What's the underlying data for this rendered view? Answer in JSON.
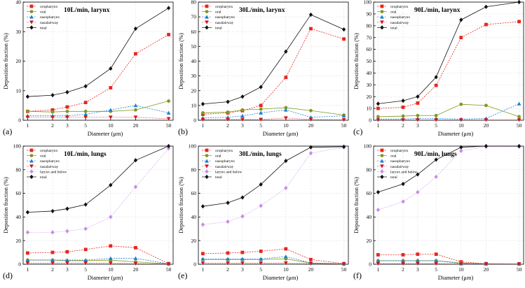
{
  "figure": {
    "colors": {
      "oropharynx": "#e8251f",
      "oral": "#7f9a1b",
      "nasopharynx": "#1f7fd6",
      "nasalairway": "#d2171f",
      "larynx_and_below": "#c98ae6",
      "total": "#111111"
    }
  },
  "chart_data": [
    {
      "type": "line",
      "panel_label": "(a)",
      "title": "10L/min, larynx",
      "xlabel": "Diameter (μm)",
      "ylabel": "Deposition fraction (%)",
      "x_tick_labels": [
        "1",
        "2",
        "3",
        "5",
        "10",
        "20",
        "50"
      ],
      "x": [
        1,
        2,
        3,
        5,
        10,
        20,
        50
      ],
      "ylim": [
        0,
        40
      ],
      "yticks": [
        0,
        10,
        20,
        30,
        40
      ],
      "series": [
        {
          "name": "oropharynx",
          "values": [
            3,
            3.5,
            4.5,
            6,
            11,
            22.5,
            29
          ]
        },
        {
          "name": "oral",
          "values": [
            3,
            2.8,
            3,
            3,
            3,
            3.5,
            6.5
          ]
        },
        {
          "name": "nasopharynx",
          "values": [
            1.5,
            1.5,
            1.5,
            2,
            3.5,
            5,
            2.5
          ]
        },
        {
          "name": "nasalairway",
          "values": [
            1,
            1,
            1,
            1,
            1,
            1,
            0.5
          ]
        },
        {
          "name": "total",
          "values": [
            8,
            8.5,
            9.5,
            11.5,
            17.5,
            31,
            38
          ]
        }
      ]
    },
    {
      "type": "line",
      "panel_label": "(b)",
      "title": "30L/min, larynx",
      "xlabel": "Diameter (μm)",
      "ylabel": "Deposition fraction (%)",
      "x_tick_labels": [
        "1",
        "2",
        "3",
        "5",
        "10",
        "20",
        "50"
      ],
      "x": [
        1,
        2,
        3,
        5,
        10,
        20,
        50
      ],
      "ylim": [
        0,
        80
      ],
      "yticks": [
        0,
        10,
        20,
        30,
        40,
        50,
        60,
        70,
        80
      ],
      "series": [
        {
          "name": "oropharynx",
          "values": [
            4,
            5,
            6.5,
            10,
            29,
            62,
            55
          ]
        },
        {
          "name": "oral",
          "values": [
            5,
            5.5,
            7,
            7.5,
            8.5,
            6.5,
            3.5
          ]
        },
        {
          "name": "nasopharynx",
          "values": [
            1.5,
            2,
            3,
            5,
            7,
            2,
            3
          ]
        },
        {
          "name": "nasalairway",
          "values": [
            0.5,
            0.5,
            0.5,
            0.5,
            1.5,
            0.5,
            0.3
          ]
        },
        {
          "name": "total",
          "values": [
            11,
            12.5,
            16,
            22.5,
            46.5,
            71.5,
            61.5
          ]
        }
      ]
    },
    {
      "type": "line",
      "panel_label": "(c)",
      "title": "90L/min, larynx",
      "xlabel": "Diameter (μm)",
      "ylabel": "Deposition fraction (%)",
      "x_tick_labels": [
        "1",
        "2",
        "3",
        "5",
        "10",
        "20",
        "50"
      ],
      "x": [
        1,
        2,
        3,
        5,
        10,
        20,
        50
      ],
      "ylim": [
        0,
        100
      ],
      "yticks": [
        0,
        10,
        20,
        30,
        40,
        50,
        60,
        70,
        80,
        90,
        100
      ],
      "series": [
        {
          "name": "oropharynx",
          "values": [
            10,
            11,
            14.5,
            29.5,
            70,
            81,
            83.5
          ]
        },
        {
          "name": "oral",
          "values": [
            3,
            3.5,
            4,
            4,
            13.5,
            12.5,
            3
          ]
        },
        {
          "name": "nasopharynx",
          "values": [
            1,
            1,
            1.5,
            1.5,
            1,
            1.5,
            14
          ]
        },
        {
          "name": "nasalairway",
          "values": [
            0.2,
            0.2,
            0.2,
            0.2,
            0.2,
            0.2,
            0.2
          ]
        },
        {
          "name": "total",
          "values": [
            14,
            16.5,
            20,
            36.5,
            85,
            96,
            100
          ]
        }
      ]
    },
    {
      "type": "line",
      "panel_label": "(d)",
      "title": "10L/min, lungs",
      "xlabel": "Diameter (μm)",
      "ylabel": "Deposition fraction (%)",
      "x_tick_labels": [
        "1",
        "2",
        "3",
        "5",
        "10",
        "20",
        "50"
      ],
      "x": [
        1,
        2,
        3,
        5,
        10,
        20,
        50
      ],
      "ylim": [
        0,
        100
      ],
      "yticks": [
        0,
        20,
        40,
        60,
        80,
        100
      ],
      "series": [
        {
          "name": "oropharynx",
          "values": [
            9.5,
            10,
            10.5,
            12.5,
            15.5,
            14,
            0.5
          ]
        },
        {
          "name": "oral",
          "values": [
            3.5,
            3.5,
            3,
            3,
            3.5,
            2,
            0.3
          ]
        },
        {
          "name": "nasopharynx",
          "values": [
            3.5,
            3.5,
            3.5,
            3.5,
            5,
            5,
            0.3
          ]
        },
        {
          "name": "nasalairway",
          "values": [
            1,
            1,
            1,
            1,
            1,
            0.5,
            0.2
          ]
        },
        {
          "name": "larynx and below",
          "values": [
            27,
            27,
            28,
            30,
            40,
            65.5,
            98
          ]
        },
        {
          "name": "total",
          "values": [
            44,
            45,
            47,
            50.5,
            67,
            88,
            100
          ]
        }
      ]
    },
    {
      "type": "line",
      "panel_label": "(e)",
      "title": "30L/min, lungs",
      "xlabel": "Diameter (μm)",
      "ylabel": "Deposition fraction (%)",
      "x_tick_labels": [
        "1",
        "2",
        "3",
        "5",
        "10",
        "20",
        "50"
      ],
      "x": [
        1,
        2,
        3,
        5,
        10,
        20,
        50
      ],
      "ylim": [
        0,
        100
      ],
      "yticks": [
        0,
        20,
        40,
        60,
        80,
        100
      ],
      "series": [
        {
          "name": "oropharynx",
          "values": [
            9,
            9.5,
            10,
            11,
            13,
            4,
            0.5
          ]
        },
        {
          "name": "oral",
          "values": [
            4,
            4,
            4,
            4,
            4.5,
            1,
            0.3
          ]
        },
        {
          "name": "nasopharynx",
          "values": [
            4.5,
            4.5,
            4.5,
            4.5,
            6.5,
            1,
            0.3
          ]
        },
        {
          "name": "nasalairway",
          "values": [
            1,
            1,
            1,
            1,
            1,
            0.5,
            0.2
          ]
        },
        {
          "name": "larynx and below",
          "values": [
            33.5,
            36,
            40.5,
            49.5,
            64.5,
            94,
            99
          ]
        },
        {
          "name": "total",
          "values": [
            49,
            52,
            56.5,
            67.5,
            87.5,
            99,
            99.5
          ]
        }
      ]
    },
    {
      "type": "line",
      "panel_label": "(f)",
      "title": "90L/min, lungs",
      "xlabel": "Diameter (μm)",
      "ylabel": "Deposition fraction (%)",
      "x_tick_labels": [
        "1",
        "2",
        "3",
        "5",
        "10",
        "20",
        "50"
      ],
      "x": [
        1,
        2,
        3,
        5,
        10,
        20,
        50
      ],
      "ylim": [
        0,
        100
      ],
      "yticks": [
        0,
        20,
        40,
        60,
        80,
        100
      ],
      "series": [
        {
          "name": "oropharynx",
          "values": [
            8,
            8,
            8.5,
            8.5,
            2,
            0.5,
            0.3
          ]
        },
        {
          "name": "oral",
          "values": [
            3,
            3,
            3,
            3,
            1,
            0.3,
            0.2
          ]
        },
        {
          "name": "nasopharynx",
          "values": [
            3,
            3,
            3,
            3,
            0.5,
            0.3,
            0.2
          ]
        },
        {
          "name": "nasalairway",
          "values": [
            0.5,
            0.5,
            0.5,
            0.5,
            0.2,
            0.2,
            0.2
          ]
        },
        {
          "name": "larynx and below",
          "values": [
            46,
            53,
            61,
            74,
            96,
            99.5,
            99.5
          ]
        },
        {
          "name": "total",
          "values": [
            61,
            68,
            76,
            88.5,
            99,
            100,
            100
          ]
        }
      ]
    }
  ]
}
